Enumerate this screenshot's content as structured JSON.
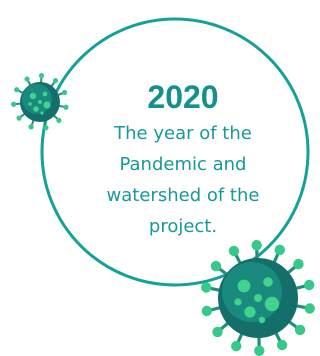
{
  "year": "2020",
  "caption": [
    "The year of the",
    "Pandemic and",
    "watershed of the",
    "project."
  ]
}
